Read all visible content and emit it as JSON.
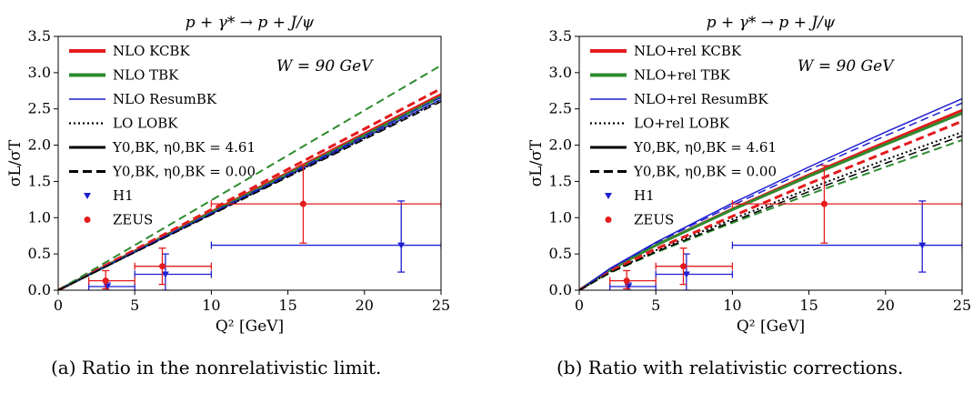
{
  "captions": [
    "(a) Ratio in the nonrelativistic limit.",
    "(b) Ratio with relativistic corrections."
  ],
  "chart_data": [
    {
      "type": "line",
      "title": "p + γ* → p + J/ψ",
      "xlabel": "Q² [GeV]",
      "ylabel": "σL/σT",
      "xlim": [
        0,
        25
      ],
      "ylim": [
        0,
        3.5
      ],
      "xticks": [
        0,
        5,
        10,
        15,
        20,
        25
      ],
      "yticks": [
        0.0,
        0.5,
        1.0,
        1.5,
        2.0,
        2.5,
        3.0,
        3.5
      ],
      "annotation": "W = 90 GeV",
      "legend_position": "top-left",
      "legend": [
        {
          "label": "NLO KCBK",
          "color": "#e41a1c",
          "style": "thick-solid"
        },
        {
          "label": "NLO TBK",
          "color": "#2e8b2e",
          "style": "thick-solid"
        },
        {
          "label": "NLO ResumBK",
          "color": "#1f1fd0",
          "style": "thin-solid"
        },
        {
          "label": "LO LOBK",
          "color": "#000000",
          "style": "dotted"
        },
        {
          "label": "Y0,BK, η0,BK = 4.61",
          "color": "#000000",
          "style": "solid"
        },
        {
          "label": "Y0,BK, η0,BK = 0.00",
          "color": "#000000",
          "style": "dashed"
        },
        {
          "label": "H1",
          "color": "#1f1fd0",
          "style": "triangle-marker"
        },
        {
          "label": "ZEUS",
          "color": "#e41a1c",
          "style": "circle-marker"
        }
      ],
      "series": [
        {
          "name": "NLO KCBK (4.61)",
          "color": "#e41a1c",
          "dash": "solid",
          "width": 3,
          "x": [
            0,
            25
          ],
          "y": [
            0,
            2.7
          ]
        },
        {
          "name": "NLO TBK (4.61)",
          "color": "#2e8b2e",
          "dash": "solid",
          "width": 3,
          "x": [
            0,
            25
          ],
          "y": [
            0,
            2.67
          ]
        },
        {
          "name": "NLO ResumBK (4.61)",
          "color": "#1f1fd0",
          "dash": "solid",
          "width": 1.5,
          "x": [
            0,
            25
          ],
          "y": [
            0,
            2.63
          ]
        },
        {
          "name": "LO LOBK (4.61)",
          "color": "#000000",
          "dash": "dotted",
          "width": 2,
          "x": [
            0,
            25
          ],
          "y": [
            0,
            2.62
          ]
        },
        {
          "name": "NLO KCBK (0.00)",
          "color": "#e41a1c",
          "dash": "dashed",
          "width": 3,
          "x": [
            0,
            25
          ],
          "y": [
            0,
            2.78
          ]
        },
        {
          "name": "NLO TBK (0.00)",
          "color": "#2e8b2e",
          "dash": "dashed",
          "width": 2,
          "x": [
            0,
            25
          ],
          "y": [
            0,
            3.1
          ]
        },
        {
          "name": "NLO ResumBK (0.00)",
          "color": "#1f1fd0",
          "dash": "dashed",
          "width": 1.5,
          "x": [
            0,
            25
          ],
          "y": [
            0,
            2.66
          ]
        },
        {
          "name": "LO LOBK (0.00)",
          "color": "#000000",
          "dash": "dashed",
          "width": 1.5,
          "x": [
            0,
            25
          ],
          "y": [
            0,
            2.6
          ]
        }
      ],
      "points": [
        {
          "set": "H1",
          "x": 3.2,
          "y": 0.05,
          "xerr": [
            2,
            5
          ],
          "yerr": [
            0.0,
            0.1
          ]
        },
        {
          "set": "H1",
          "x": 7.0,
          "y": 0.22,
          "xerr": [
            5,
            10
          ],
          "yerr": [
            0.0,
            0.5
          ]
        },
        {
          "set": "H1",
          "x": 22.4,
          "y": 0.62,
          "xerr": [
            10,
            25
          ],
          "yerr": [
            0.25,
            1.23
          ]
        },
        {
          "set": "ZEUS",
          "x": 3.1,
          "y": 0.13,
          "xerr": [
            2,
            5
          ],
          "yerr": [
            0.02,
            0.27
          ]
        },
        {
          "set": "ZEUS",
          "x": 6.8,
          "y": 0.33,
          "xerr": [
            5,
            10
          ],
          "yerr": [
            0.08,
            0.58
          ]
        },
        {
          "set": "ZEUS",
          "x": 16.0,
          "y": 1.19,
          "xerr": [
            10,
            25
          ],
          "yerr": [
            0.65,
            1.72
          ]
        }
      ]
    },
    {
      "type": "line",
      "title": "p + γ* → p + J/ψ",
      "xlabel": "Q² [GeV]",
      "ylabel": "σL/σT",
      "xlim": [
        0,
        25
      ],
      "ylim": [
        0,
        3.5
      ],
      "xticks": [
        0,
        5,
        10,
        15,
        20,
        25
      ],
      "yticks": [
        0.0,
        0.5,
        1.0,
        1.5,
        2.0,
        2.5,
        3.0,
        3.5
      ],
      "annotation": "W = 90 GeV",
      "legend_position": "top-left",
      "legend": [
        {
          "label": "NLO+rel KCBK",
          "color": "#e41a1c",
          "style": "thick-solid"
        },
        {
          "label": "NLO+rel TBK",
          "color": "#2e8b2e",
          "style": "thick-solid"
        },
        {
          "label": "NLO+rel ResumBK",
          "color": "#1f1fd0",
          "style": "thin-solid"
        },
        {
          "label": "LO+rel LOBK",
          "color": "#000000",
          "style": "dotted"
        },
        {
          "label": "Y0,BK, η0,BK = 4.61",
          "color": "#000000",
          "style": "solid"
        },
        {
          "label": "Y0,BK, η0,BK = 0.00",
          "color": "#000000",
          "style": "dashed"
        },
        {
          "label": "H1",
          "color": "#1f1fd0",
          "style": "triangle-marker"
        },
        {
          "label": "ZEUS",
          "color": "#e41a1c",
          "style": "circle-marker"
        }
      ],
      "series": [
        {
          "name": "NLO+rel KCBK (4.61)",
          "color": "#e41a1c",
          "dash": "solid",
          "width": 3,
          "x": [
            0,
            2,
            5,
            10,
            15,
            20,
            25
          ],
          "y": [
            0,
            0.28,
            0.62,
            1.12,
            1.59,
            2.04,
            2.48
          ]
        },
        {
          "name": "NLO+rel TBK (4.61)",
          "color": "#2e8b2e",
          "dash": "solid",
          "width": 3,
          "x": [
            0,
            2,
            5,
            10,
            15,
            20,
            25
          ],
          "y": [
            0,
            0.28,
            0.62,
            1.11,
            1.57,
            2.01,
            2.44
          ]
        },
        {
          "name": "NLO+rel ResumBK (4.61)",
          "color": "#1f1fd0",
          "dash": "solid",
          "width": 1.5,
          "x": [
            0,
            2,
            5,
            10,
            15,
            20,
            25
          ],
          "y": [
            0,
            0.3,
            0.66,
            1.2,
            1.7,
            2.18,
            2.64
          ]
        },
        {
          "name": "LO+rel LOBK (4.61)",
          "color": "#000000",
          "dash": "dotted",
          "width": 2,
          "x": [
            0,
            2,
            5,
            10,
            15,
            20,
            25
          ],
          "y": [
            0,
            0.25,
            0.55,
            0.98,
            1.4,
            1.8,
            2.18
          ]
        },
        {
          "name": "NLO+rel KCBK (0.00)",
          "color": "#e41a1c",
          "dash": "dashed",
          "width": 3,
          "x": [
            0,
            2,
            5,
            10,
            15,
            20,
            25
          ],
          "y": [
            0,
            0.26,
            0.57,
            1.02,
            1.47,
            1.9,
            2.33
          ]
        },
        {
          "name": "NLO+rel TBK (0.00)",
          "color": "#2e8b2e",
          "dash": "dashed",
          "width": 2,
          "x": [
            0,
            2,
            5,
            10,
            15,
            20,
            25
          ],
          "y": [
            0,
            0.24,
            0.52,
            0.93,
            1.32,
            1.7,
            2.07
          ]
        },
        {
          "name": "NLO+rel ResumBK (0.00)",
          "color": "#1f1fd0",
          "dash": "dashed",
          "width": 1.5,
          "x": [
            0,
            2,
            5,
            10,
            15,
            20,
            25
          ],
          "y": [
            0,
            0.29,
            0.65,
            1.17,
            1.66,
            2.13,
            2.58
          ]
        },
        {
          "name": "LO+rel LOBK (0.00)",
          "color": "#000000",
          "dash": "dashed",
          "width": 1.5,
          "x": [
            0,
            2,
            5,
            10,
            15,
            20,
            25
          ],
          "y": [
            0,
            0.24,
            0.53,
            0.95,
            1.36,
            1.75,
            2.13
          ]
        }
      ],
      "points": [
        {
          "set": "H1",
          "x": 3.2,
          "y": 0.05,
          "xerr": [
            2,
            5
          ],
          "yerr": [
            0.0,
            0.1
          ]
        },
        {
          "set": "H1",
          "x": 7.0,
          "y": 0.22,
          "xerr": [
            5,
            10
          ],
          "yerr": [
            0.0,
            0.5
          ]
        },
        {
          "set": "H1",
          "x": 22.4,
          "y": 0.62,
          "xerr": [
            10,
            25
          ],
          "yerr": [
            0.25,
            1.23
          ]
        },
        {
          "set": "ZEUS",
          "x": 3.1,
          "y": 0.13,
          "xerr": [
            2,
            5
          ],
          "yerr": [
            0.02,
            0.27
          ]
        },
        {
          "set": "ZEUS",
          "x": 6.8,
          "y": 0.33,
          "xerr": [
            5,
            10
          ],
          "yerr": [
            0.08,
            0.58
          ]
        },
        {
          "set": "ZEUS",
          "x": 16.0,
          "y": 1.19,
          "xerr": [
            10,
            25
          ],
          "yerr": [
            0.65,
            1.72
          ]
        }
      ]
    }
  ]
}
